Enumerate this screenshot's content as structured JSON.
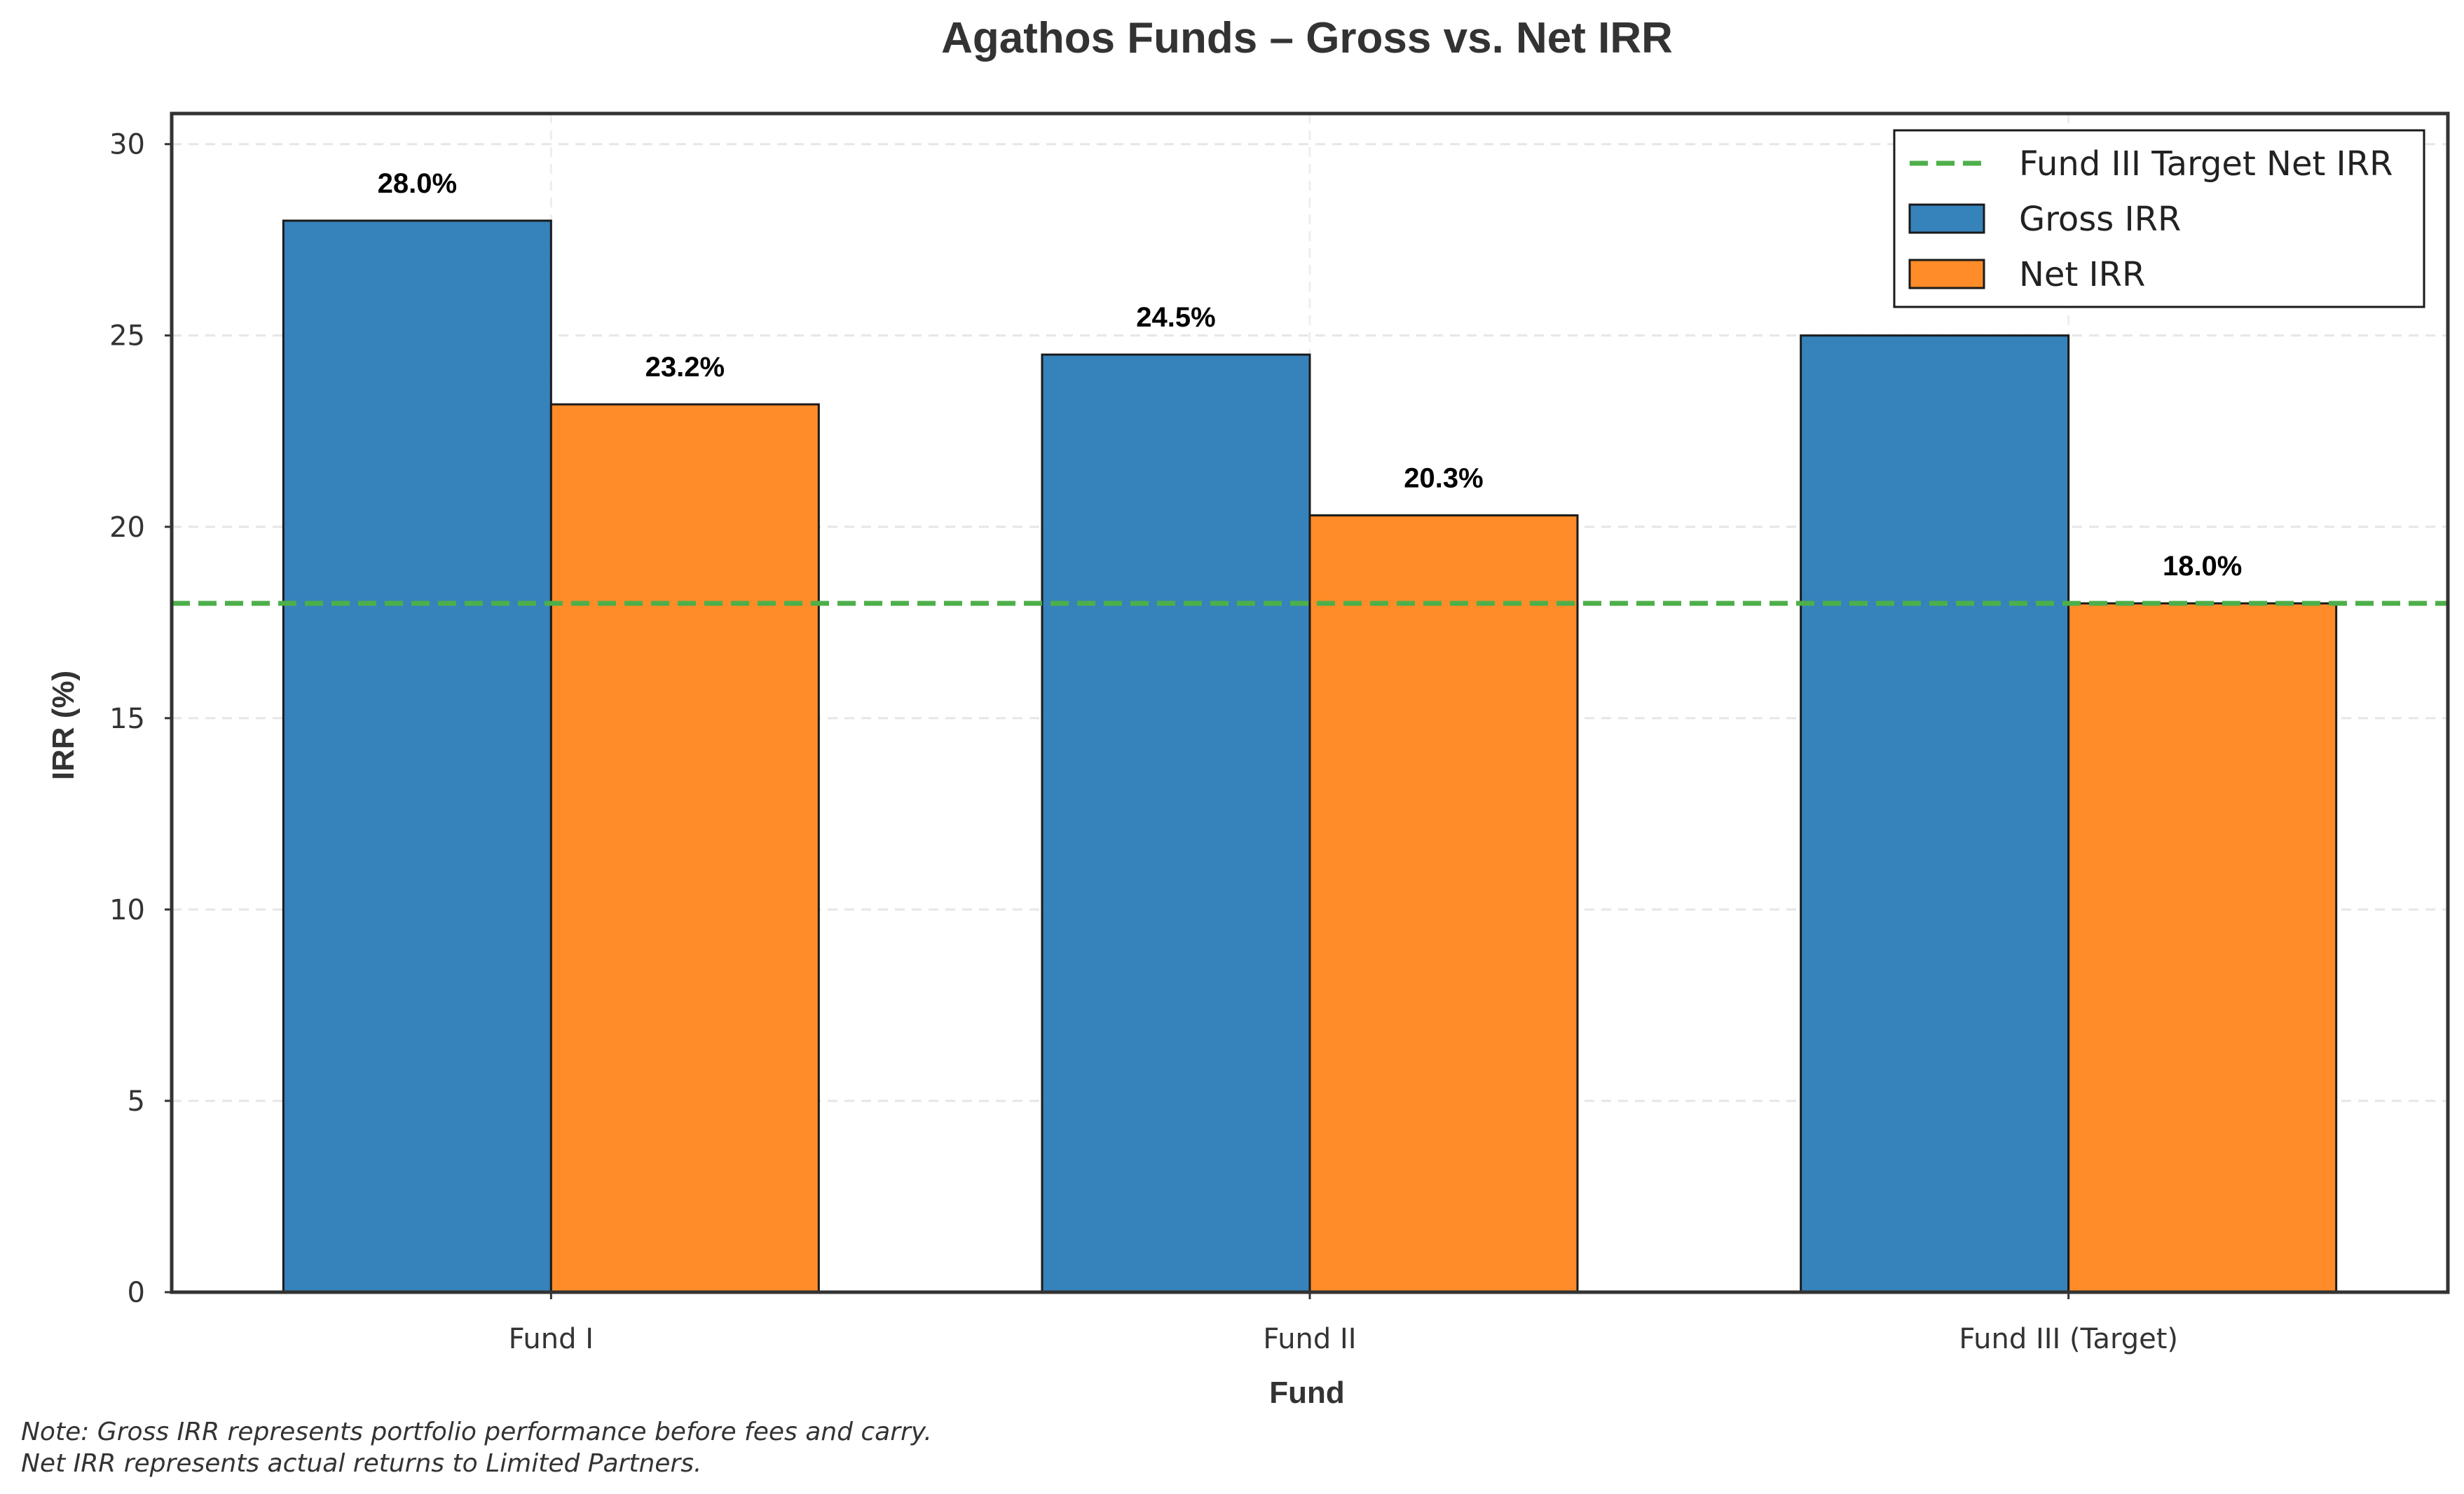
{
  "chart_data": {
    "type": "bar",
    "title": "Agathos Funds – Gross vs. Net IRR",
    "xlabel": "Fund",
    "ylabel": "IRR (%)",
    "categories": [
      "Fund I",
      "Fund II",
      "Fund III (Target)"
    ],
    "series": [
      {
        "name": "Gross IRR",
        "values": [
          28.0,
          24.5,
          25.0
        ],
        "color": "#3682bb",
        "data_labels": [
          "28.0%",
          "24.5%",
          "25.0%"
        ]
      },
      {
        "name": "Net IRR",
        "values": [
          23.2,
          20.3,
          18.0
        ],
        "color": "#ff8c28",
        "data_labels": [
          "23.2%",
          "20.3%",
          "18.0%"
        ]
      }
    ],
    "reference_line": {
      "name": "Fund III Target Net IRR",
      "value": 18.0,
      "color": "#4daf4a",
      "style": "dashed"
    },
    "ylim": [
      0,
      30.8
    ],
    "yticks": [
      0,
      5,
      10,
      15,
      20,
      25,
      30
    ],
    "ytick_labels": [
      "0",
      "5",
      "10",
      "15",
      "20",
      "25",
      "30"
    ],
    "grid": "on",
    "legend_position": "top-right",
    "legend_entries": [
      "Fund III Target Net IRR",
      "Gross IRR",
      "Net IRR"
    ],
    "note_lines": [
      "Note: Gross IRR represents portfolio performance before fees and carry.",
      "Net IRR represents actual returns to Limited Partners."
    ]
  }
}
